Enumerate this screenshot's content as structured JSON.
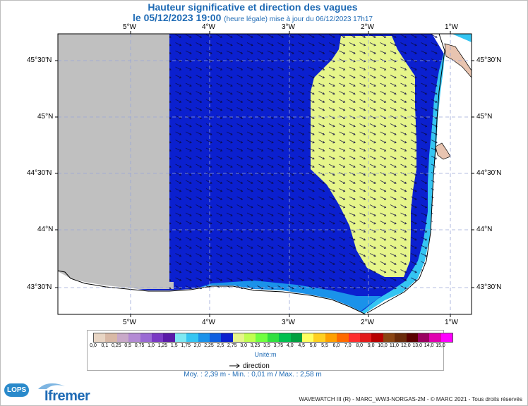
{
  "title": "Hauteur significative et direction des vagues",
  "date_line": "le 05/12/2023 19:00",
  "date_note": "(heure légale) mise à jour du 06/12/2023 17h17",
  "lon_ticks": [
    "5°W",
    "4°W",
    "3°W",
    "2°W",
    "1°W"
  ],
  "lat_ticks": [
    "45°30'N",
    "45°N",
    "44°30'N",
    "44°N",
    "43°30'N"
  ],
  "colorbar": {
    "labels": [
      "0,0",
      "0,1",
      "0,25",
      "0,5",
      "0,75",
      "1,0",
      "1,25",
      "1,5",
      "1,75",
      "2,0",
      "2,25",
      "2,5",
      "2,75",
      "3,0",
      "3,25",
      "3,5",
      "3,75",
      "4,0",
      "4,5",
      "5,0",
      "5,5",
      "6,0",
      "7,0",
      "8,0",
      "9,0",
      "10,0",
      "11,0",
      "12,0",
      "13,0",
      "14,0",
      "15,0"
    ],
    "colors": [
      "#e8d5c4",
      "#d9b9a6",
      "#c9a9c9",
      "#b38ad4",
      "#9a6ad4",
      "#7a3ac4",
      "#5a1aa8",
      "#7ee8f2",
      "#35c5f2",
      "#1a92ea",
      "#0f5fe0",
      "#0b20cf",
      "#e6f58a",
      "#c0ff50",
      "#70ff40",
      "#30e040",
      "#00c050",
      "#00a040",
      "#ffff60",
      "#ffd020",
      "#ffa000",
      "#ff6a00",
      "#ff2e2e",
      "#e31a1a",
      "#b80000",
      "#8b4513",
      "#6a2a0a",
      "#5a0000",
      "#9a0060",
      "#e000b0",
      "#ff00ff"
    ],
    "unit": "Unité:m",
    "arrow_label": "direction"
  },
  "stats": "Moy. : 2,39 m   -   Min. : 0,01 m / Max. : 2,58 m",
  "credit": "WAVEWATCH III (R) - MARC_WW3-NORGAS-2M - © MARC 2021 - Tous droits réservés",
  "logo_ifremer": "Ifremer",
  "logo_lops": "LOPS",
  "map": {
    "no_data_color": "#c0c0c0",
    "main_color": "#0b20cf",
    "high_color": "#e6f58a",
    "wave_direction": "SE"
  }
}
